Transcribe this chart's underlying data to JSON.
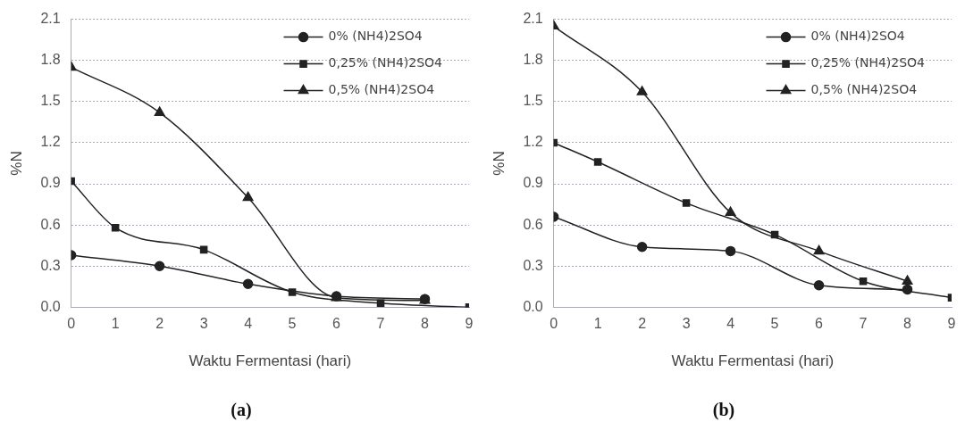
{
  "chart_data": [
    {
      "type": "line",
      "xlabel": "Waktu Fermentasi (hari)",
      "ylabel": "%N",
      "xlim": [
        0,
        9
      ],
      "xticks": [
        0,
        1,
        2,
        3,
        4,
        5,
        6,
        7,
        8,
        9
      ],
      "ylim": [
        0,
        2.1
      ],
      "yticks": [
        {
          "value": 0,
          "label": "0.0"
        },
        {
          "value": 0.3,
          "label": "0.3"
        },
        {
          "value": 0.6,
          "label": "0.6"
        },
        {
          "value": 0.9,
          "label": "0.9"
        },
        {
          "value": 1.2,
          "label": "1.2"
        },
        {
          "value": 1.5,
          "label": "1.5"
        },
        {
          "value": 1.8,
          "label": "1.8"
        },
        {
          "value": 2.1,
          "label": "2.1"
        }
      ],
      "grid": "y",
      "legend": "top right",
      "annotations": [
        "(a)"
      ],
      "series": [
        {
          "name": "0% (NH4)2SO4",
          "color": "#222222",
          "marker": "circle",
          "x": [
            0,
            2,
            4,
            6,
            8
          ],
          "values": [
            0.38,
            0.3,
            0.17,
            0.08,
            0.06
          ]
        },
        {
          "name": "0,25% (NH4)2SO4",
          "color": "#222222",
          "marker": "square",
          "x": [
            0,
            1,
            3,
            5,
            7,
            9
          ],
          "values": [
            0.92,
            0.58,
            0.42,
            0.11,
            0.03,
            0.0
          ]
        },
        {
          "name": "0,5% (NH4)2SO4",
          "color": "#222222",
          "marker": "triangle",
          "x": [
            0,
            2,
            4,
            6,
            8
          ],
          "values": [
            1.75,
            1.42,
            0.8,
            0.07,
            0.05
          ]
        }
      ]
    },
    {
      "type": "line",
      "xlabel": "Waktu Fermentasi (hari)",
      "ylabel": "%N",
      "xlim": [
        0,
        9
      ],
      "xticks": [
        0,
        1,
        2,
        3,
        4,
        5,
        6,
        7,
        8,
        9
      ],
      "ylim": [
        0,
        2.1
      ],
      "yticks": [
        {
          "value": 0,
          "label": "0.0"
        },
        {
          "value": 0.3,
          "label": "0.3"
        },
        {
          "value": 0.6,
          "label": "0.6"
        },
        {
          "value": 0.9,
          "label": "0.9"
        },
        {
          "value": 1.2,
          "label": "1.2"
        },
        {
          "value": 1.5,
          "label": "1.5"
        },
        {
          "value": 1.8,
          "label": "1.8"
        },
        {
          "value": 2.1,
          "label": "2.1"
        }
      ],
      "grid": "y",
      "legend": "top right",
      "annotations": [
        "(b)"
      ],
      "series": [
        {
          "name": "0% (NH4)2SO4",
          "color": "#222222",
          "marker": "circle",
          "x": [
            0,
            2,
            4,
            6,
            8
          ],
          "values": [
            0.66,
            0.44,
            0.41,
            0.16,
            0.13
          ]
        },
        {
          "name": "0,25% (NH4)2SO4",
          "color": "#222222",
          "marker": "square",
          "x": [
            0,
            1,
            3,
            5,
            7,
            9
          ],
          "values": [
            1.2,
            1.06,
            0.76,
            0.53,
            0.19,
            0.07
          ]
        },
        {
          "name": "0,5% (NH4)2SO4",
          "color": "#222222",
          "marker": "triangle",
          "x": [
            0,
            2,
            4,
            6,
            8
          ],
          "values": [
            2.05,
            1.57,
            0.69,
            0.41,
            0.19
          ]
        }
      ]
    }
  ]
}
